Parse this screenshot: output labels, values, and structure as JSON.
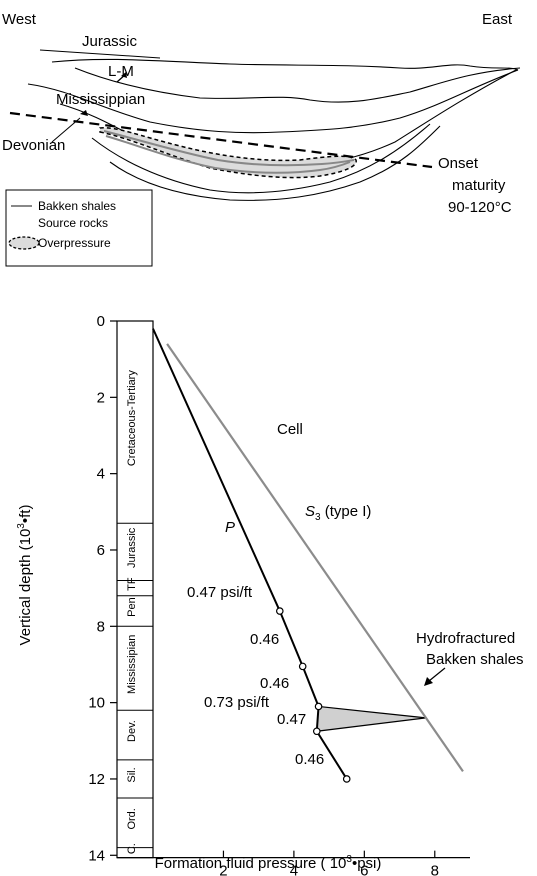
{
  "cross_section": {
    "west": "West",
    "east": "East",
    "jurassic": "Jurassic",
    "lm": "L-M",
    "mississippian": "Mississippian",
    "devonian": "Devonian",
    "onset_line1": "Onset",
    "onset_line2": "maturity",
    "onset_line3": "90-120°C",
    "legend": [
      {
        "label": "Bakken shales"
      },
      {
        "label": "Source rocks"
      },
      {
        "label": "Overpressure"
      }
    ]
  },
  "chart_data": {
    "type": "line",
    "xlabel_pre": "Formation fluid pressure ( 10",
    "xlabel_sup": "3",
    "xlabel_post": "•psi)",
    "ylabel_pre": "Vertical depth (10",
    "ylabel_sup": "3",
    "ylabel_post": "•ft)",
    "xlim": [
      0,
      9
    ],
    "ylim": [
      0,
      14.7
    ],
    "x_ticks": [
      2,
      4,
      6,
      8
    ],
    "x_tick_labels": [
      "2",
      "4",
      "6",
      "8"
    ],
    "y_ticks": [
      0,
      2,
      4,
      6,
      8,
      10,
      12,
      14
    ],
    "y_tick_labels": [
      "0",
      "2",
      "4",
      "6",
      "8",
      "10",
      "12",
      "14"
    ],
    "stratigraphy": [
      {
        "label": "Cretaceous-Tertiary",
        "top": 0,
        "bottom": 5.3
      },
      {
        "label": "Jurassic",
        "top": 5.3,
        "bottom": 6.8
      },
      {
        "label": "TF",
        "top": 6.8,
        "bottom": 7.2
      },
      {
        "label": "Pen",
        "top": 7.2,
        "bottom": 8.0
      },
      {
        "label": "Mississipian",
        "top": 8.0,
        "bottom": 10.2
      },
      {
        "label": "Dev.",
        "top": 10.2,
        "bottom": 11.5
      },
      {
        "label": "Sil.",
        "top": 11.5,
        "bottom": 12.5
      },
      {
        "label": "Ord.",
        "top": 12.5,
        "bottom": 13.8
      },
      {
        "label": "C.",
        "top": 13.8,
        "bottom": 14.7
      }
    ],
    "series": [
      {
        "name": "P",
        "color": "#000000",
        "x": [
          0,
          3.6,
          4.25,
          4.7,
          4.65,
          5.5
        ],
        "y": [
          0.2,
          7.6,
          9.05,
          10.1,
          10.75,
          12.0
        ]
      },
      {
        "name": "S3 (type I)",
        "color": "#8c8c8c",
        "x": [
          0.4,
          8.8
        ],
        "y": [
          0.6,
          11.8
        ]
      }
    ],
    "hydrofracture_spike": {
      "x": [
        4.7,
        7.75,
        4.65
      ],
      "y": [
        10.1,
        10.4,
        10.75
      ]
    },
    "annotations": {
      "cell": "Cell",
      "p_label": "P",
      "s3_label": "S",
      "s3_sub": "3",
      "s3_suffix": " (type I)",
      "grad1": "0.47 psi/ft",
      "grad2": "0.46",
      "grad3": "0.46",
      "grad4": "0.73 psi/ft",
      "grad5": "0.47",
      "grad6": "0.46",
      "hydro_line1": "Hydrofractured",
      "hydro_line2": "Bakken shales"
    }
  }
}
